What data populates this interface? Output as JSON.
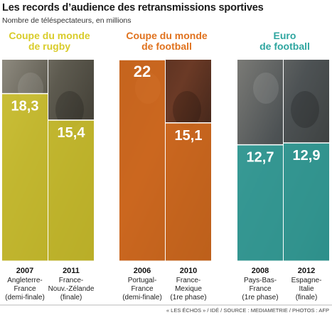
{
  "header": {
    "title": "Les records d’audience des retransmissions sportives",
    "subtitle": "Nombre de téléspectateurs, en millions"
  },
  "credit": "« LES ÉCHOS » / IDÉ / SOURCE : MEDIAMETRIE / PHOTOS : AFP",
  "colors": {
    "rugby": "#d9cc2a",
    "football": "#e0721e",
    "euro": "#2fa6a0"
  },
  "chart_data": {
    "type": "bar",
    "title": "Les records d’audience des retransmissions sportives",
    "subtitle": "Nombre de téléspectateurs, en millions",
    "ylim": [
      0,
      22
    ],
    "groups": [
      {
        "name": "Coupe du monde de rugby",
        "title_lines": [
          "Coupe du monde",
          "de rugby"
        ],
        "color": "#d9cc2a",
        "bars": [
          {
            "year": "2007",
            "value": 18.3,
            "label": "18,3",
            "desc": [
              "Angleterre-",
              "France",
              "(demi-finale)"
            ]
          },
          {
            "year": "2011",
            "value": 15.4,
            "label": "15,4",
            "desc": [
              "France-",
              "Nouv.-Zélande",
              "(finale)"
            ]
          }
        ]
      },
      {
        "name": "Coupe du monde de football",
        "title_lines": [
          "Coupe du monde",
          "de football"
        ],
        "color": "#e0721e",
        "bars": [
          {
            "year": "2006",
            "value": 22,
            "label": "22",
            "desc": [
              "Portugal-",
              "France",
              "(demi-finale)"
            ]
          },
          {
            "year": "2010",
            "value": 15.1,
            "label": "15,1",
            "desc": [
              "France-",
              "Mexique",
              "(1re phase)"
            ]
          }
        ]
      },
      {
        "name": "Euro de football",
        "title_lines": [
          "Euro",
          "de football"
        ],
        "color": "#2fa6a0",
        "bars": [
          {
            "year": "2008",
            "value": 12.7,
            "label": "12,7",
            "desc": [
              "Pays-Bas-",
              "France",
              "(1re phase)"
            ]
          },
          {
            "year": "2012",
            "value": 12.9,
            "label": "12,9",
            "desc": [
              "Espagne-",
              "Italie",
              "(finale)"
            ]
          }
        ]
      }
    ]
  }
}
